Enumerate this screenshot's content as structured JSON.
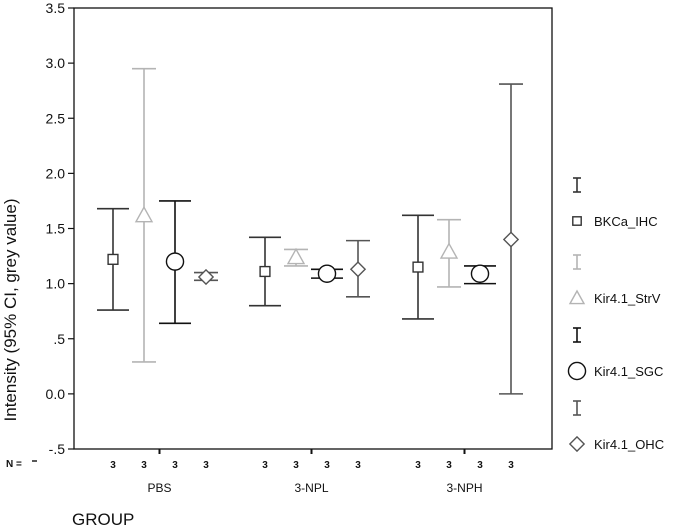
{
  "chart_data": {
    "type": "errorbar",
    "title": "",
    "xlabel": "GROUP",
    "ylabel": "Intensity (95% CI, grey value)",
    "ylim": [
      -0.5,
      3.5
    ],
    "y_ticks": [
      {
        "value": 3.5,
        "label": "3.5"
      },
      {
        "value": 3.0,
        "label": "3.0"
      },
      {
        "value": 2.5,
        "label": "2.5"
      },
      {
        "value": 2.0,
        "label": "2.0"
      },
      {
        "value": 1.5,
        "label": "1.5"
      },
      {
        "value": 1.0,
        "label": "1.0"
      },
      {
        "value": 0.5,
        "label": ".5"
      },
      {
        "value": 0.0,
        "label": "0.0"
      },
      {
        "value": -0.5,
        "label": "-.5"
      }
    ],
    "grid": false,
    "legend_position": "right",
    "n_label": "N =",
    "categories": [
      "PBS",
      "3-NPL",
      "3-NPH"
    ],
    "series": [
      {
        "name": "BKCa_IHC",
        "marker": "square",
        "color": "#333333",
        "n": [
          "3",
          "3",
          "3"
        ],
        "mean": [
          1.22,
          1.11,
          1.15
        ],
        "lower": [
          0.76,
          0.8,
          0.68
        ],
        "upper": [
          1.68,
          1.42,
          1.62
        ]
      },
      {
        "name": "Kir4.1_StrV",
        "marker": "triangle",
        "color": "#b4b4b4",
        "n": [
          "3",
          "3",
          "3"
        ],
        "mean": [
          1.62,
          1.24,
          1.29
        ],
        "lower": [
          0.29,
          1.16,
          0.97
        ],
        "upper": [
          2.95,
          1.31,
          1.58
        ]
      },
      {
        "name": "Kir4.1_SGC",
        "marker": "circle",
        "color": "#111111",
        "n": [
          "3",
          "3",
          "3"
        ],
        "mean": [
          1.2,
          1.09,
          1.09
        ],
        "lower": [
          0.64,
          1.05,
          1.0
        ],
        "upper": [
          1.75,
          1.13,
          1.16
        ]
      },
      {
        "name": "Kir4.1_OHC",
        "marker": "diamond",
        "color": "#555555",
        "n": [
          "3",
          "3",
          "3"
        ],
        "mean": [
          1.06,
          1.13,
          1.4
        ],
        "lower": [
          1.03,
          0.88,
          0.0
        ],
        "upper": [
          1.1,
          1.39,
          2.81
        ]
      }
    ]
  }
}
